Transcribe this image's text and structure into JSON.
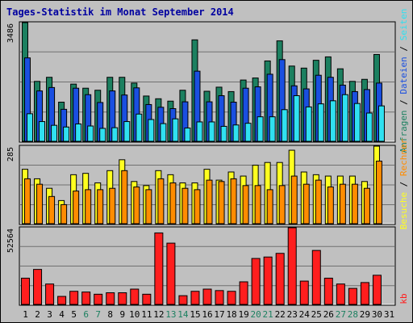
{
  "chart_data": {
    "type": "bar",
    "title": "Tages-Statistik im Monat September 2014",
    "categories": [
      "1",
      "2",
      "3",
      "4",
      "5",
      "6",
      "7",
      "8",
      "9",
      "10",
      "11",
      "12",
      "13",
      "14",
      "15",
      "16",
      "17",
      "18",
      "19",
      "20",
      "21",
      "22",
      "23",
      "24",
      "25",
      "26",
      "27",
      "28",
      "29",
      "30",
      "31"
    ],
    "weekend_days": [
      "6",
      "7",
      "13",
      "14",
      "20",
      "21",
      "27",
      "28"
    ],
    "panels": [
      {
        "name": "hits",
        "max_label": "3486",
        "ylim": [
          0,
          3486
        ],
        "series": [
          {
            "name": "Anfragen",
            "color": "#1c8060",
            "values": [
              3486,
              1760,
              1880,
              1150,
              1680,
              1560,
              1500,
              1880,
              1880,
              1710,
              1330,
              1250,
              1180,
              1500,
              2980,
              1470,
              1590,
              1460,
              1800,
              1860,
              2360,
              2950,
              2210,
              2150,
              2380,
              2480,
              2130,
              1760,
              1820,
              2550,
              null
            ]
          },
          {
            "name": "Dateien",
            "color": "#1a4fe0",
            "values": [
              2450,
              1480,
              1580,
              940,
              1560,
              1370,
              1140,
              1480,
              1360,
              1570,
              1080,
              1000,
              960,
              1160,
              2060,
              1160,
              1340,
              1150,
              1560,
              1600,
              1970,
              2400,
              1630,
              1540,
              1940,
              1880,
              1650,
              1460,
              1520,
              1710,
              null
            ]
          },
          {
            "name": "Seiten",
            "color": "#30e0f0",
            "values": [
              810,
              580,
              470,
              420,
              510,
              450,
              380,
              400,
              580,
              800,
              640,
              520,
              660,
              390,
              570,
              570,
              440,
              480,
              530,
              720,
              720,
              930,
              1340,
              1010,
              1100,
              1190,
              1370,
              1110,
              830,
              1040,
              null
            ]
          }
        ]
      },
      {
        "name": "visits",
        "max_label": "285",
        "ylim": [
          0,
          285
        ],
        "series": [
          {
            "name": "Besuche",
            "color": "#ffff20",
            "values": [
              200,
              165,
              130,
              85,
              180,
              185,
              150,
              195,
              235,
              155,
              140,
              195,
              180,
              150,
              150,
              200,
              160,
              190,
              175,
              215,
              225,
              225,
              270,
              190,
              180,
              175,
              175,
              175,
              155,
              285,
              null
            ]
          },
          {
            "name": "Rechner",
            "color": "#ff8c00",
            "values": [
              165,
              145,
              100,
              70,
              120,
              125,
              125,
              130,
              195,
              135,
              125,
              165,
              150,
              130,
              125,
              160,
              155,
              165,
              140,
              140,
              125,
              140,
              175,
              145,
              160,
              135,
              145,
              145,
              130,
              230,
              null
            ]
          }
        ]
      },
      {
        "name": "kb",
        "max_label": "52564",
        "ylim": [
          0,
          52564
        ],
        "series": [
          {
            "name": "kb",
            "color": "#ff1e1e",
            "values": [
              18000,
              24000,
              14000,
              5500,
              9000,
              8500,
              7000,
              8000,
              8000,
              10500,
              7000,
              49000,
              42000,
              6000,
              9000,
              10500,
              9500,
              9000,
              15500,
              31500,
              32500,
              35000,
              52564,
              16000,
              37000,
              18000,
              14000,
              11000,
              15000,
              20000,
              null
            ]
          }
        ]
      }
    ],
    "right_labels": {
      "top": [
        "Anfragen",
        "Dateien",
        "Seiten"
      ],
      "middle": [
        "Besuche",
        "Rechner"
      ],
      "bottom": [
        "kb"
      ]
    },
    "colors": {
      "background": "#c0c0c0",
      "title": "#0000a0",
      "weekday_tick": "#000000",
      "weekend_tick": "#1c8060",
      "grid": "#707070",
      "frame": "#000000"
    }
  }
}
